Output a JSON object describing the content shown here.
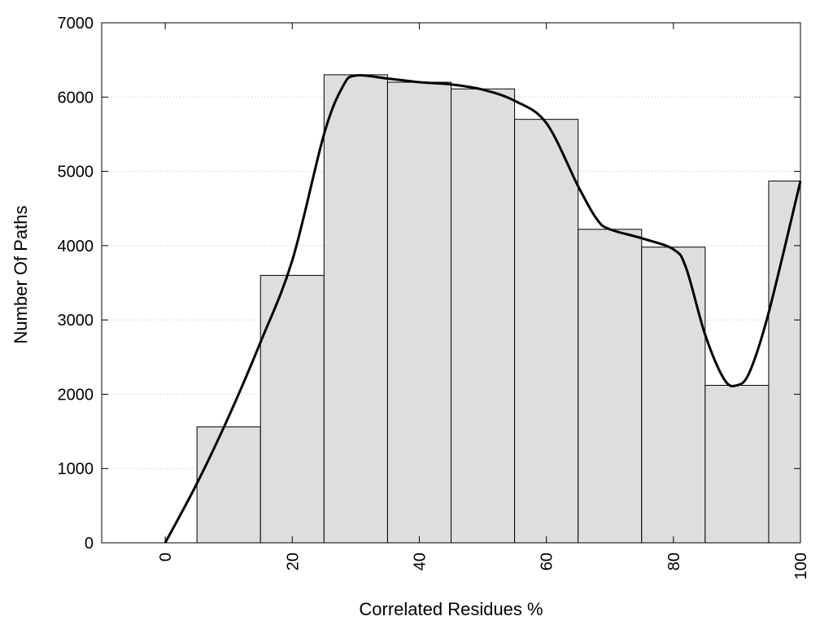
{
  "chart_data": {
    "type": "bar",
    "title": "",
    "xlabel": "Correlated Residues %",
    "ylabel": "Number Of Paths",
    "xlim": [
      -10,
      100
    ],
    "ylim": [
      0,
      7000
    ],
    "x_ticks": [
      0,
      20,
      40,
      60,
      80,
      100
    ],
    "y_ticks": [
      0,
      1000,
      2000,
      3000,
      4000,
      5000,
      6000,
      7000
    ],
    "grid": "horizontal dotted",
    "bin_width": 10,
    "bars": [
      {
        "x": 0,
        "value": 0
      },
      {
        "x": 10,
        "value": 1560
      },
      {
        "x": 20,
        "value": 3600
      },
      {
        "x": 30,
        "value": 6300
      },
      {
        "x": 40,
        "value": 6200
      },
      {
        "x": 50,
        "value": 6110
      },
      {
        "x": 60,
        "value": 5700
      },
      {
        "x": 70,
        "value": 4220
      },
      {
        "x": 80,
        "value": 3980
      },
      {
        "x": 90,
        "value": 2120
      },
      {
        "x": 100,
        "value": 4870
      }
    ],
    "smooth_curve": {
      "x": [
        0,
        5,
        10,
        15,
        20,
        25,
        28,
        30,
        35,
        40,
        45,
        50,
        55,
        60,
        65,
        68,
        70,
        75,
        80,
        82,
        85,
        88,
        90,
        92,
        95,
        100
      ],
      "y": [
        0,
        800,
        1700,
        2700,
        3800,
        5500,
        6150,
        6290,
        6250,
        6200,
        6170,
        6100,
        5950,
        5650,
        4800,
        4350,
        4220,
        4100,
        3950,
        3700,
        2800,
        2200,
        2120,
        2300,
        3100,
        4870
      ]
    },
    "bar_color": "#dedede",
    "curve_color": "#000000"
  }
}
